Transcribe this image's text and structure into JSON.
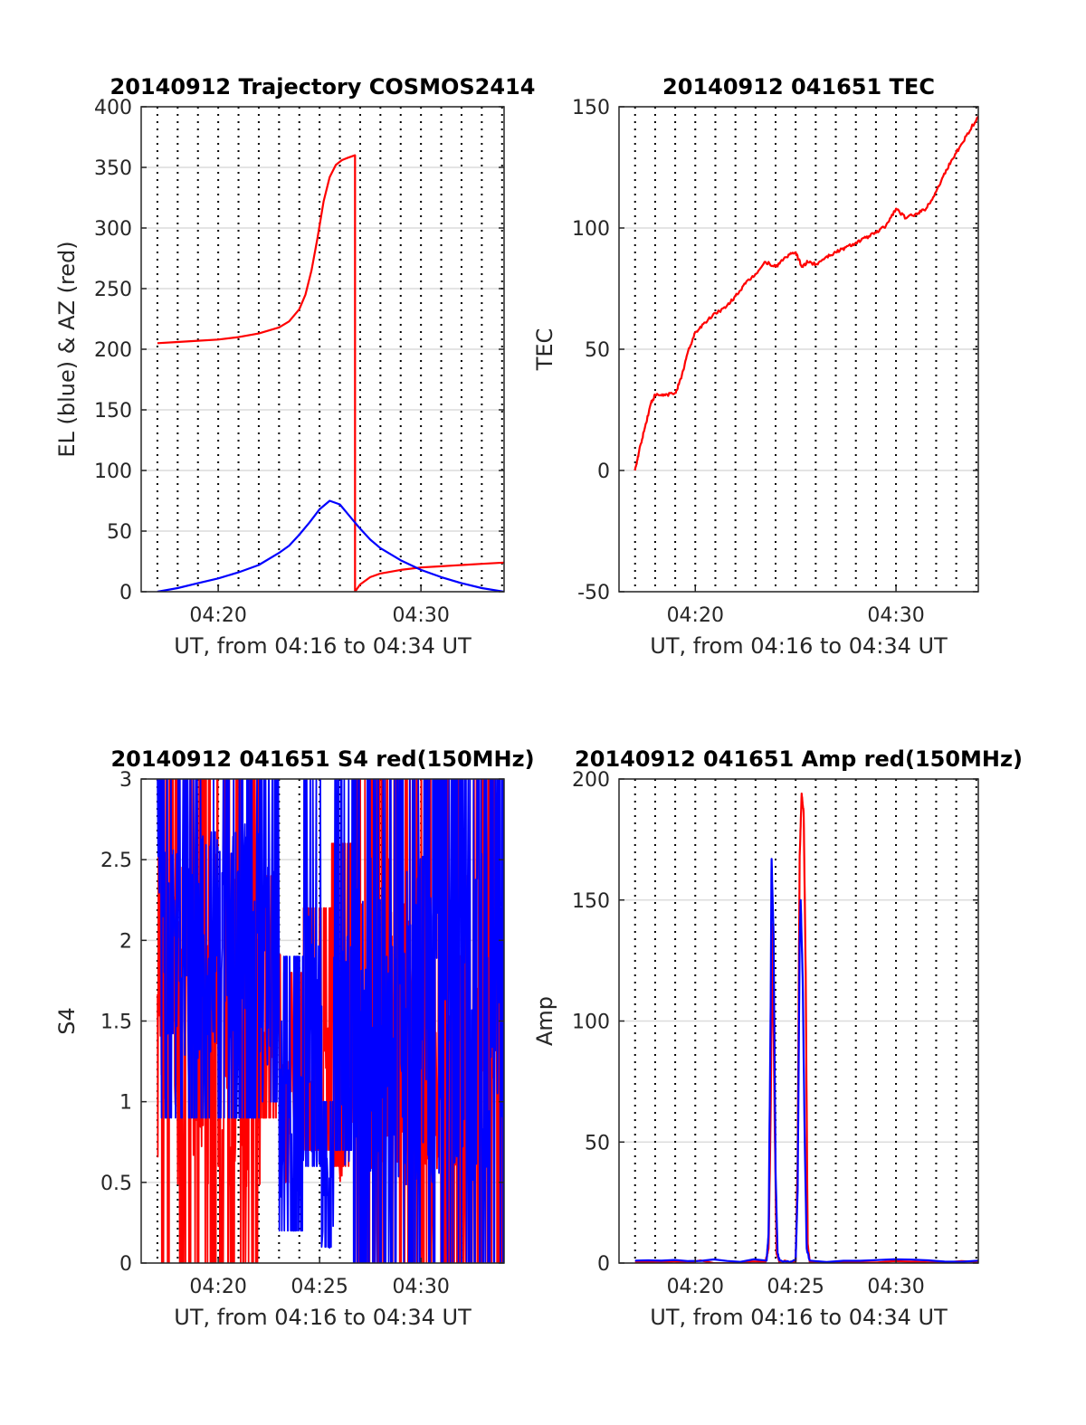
{
  "chart_data": [
    {
      "type": "line",
      "title": "20140912 Trajectory COSMOS2414",
      "xlabel": "UT, from 04:16 to 04:34 UT",
      "ylabel": "EL (blue) & AZ (red)",
      "xlim": [
        16.2,
        34.1
      ],
      "ylim": [
        0,
        400
      ],
      "x_tick_labels": [
        {
          "x": 20,
          "label": "04:20"
        },
        {
          "x": 30,
          "label": "04:30"
        }
      ],
      "y_ticks": [
        0,
        50,
        100,
        150,
        200,
        250,
        300,
        350,
        400
      ],
      "grid": true,
      "series": [
        {
          "color": "#ff0000",
          "x": [
            17,
            18,
            19,
            20,
            21,
            22,
            23,
            23.5,
            24,
            24.3,
            24.6,
            24.9,
            25.2,
            25.5,
            25.8,
            26.1,
            26.4,
            26.75,
            26.75,
            27.0,
            27.5,
            28,
            29,
            30,
            31,
            32,
            33,
            34.1
          ],
          "y": [
            205,
            206,
            207,
            208,
            210,
            213,
            218,
            223,
            233,
            245,
            265,
            292,
            322,
            342,
            352,
            356,
            358,
            360,
            0,
            6,
            12,
            15,
            18,
            20,
            21,
            22,
            23,
            24
          ]
        },
        {
          "color": "#0000ff",
          "x": [
            17,
            18,
            19,
            20,
            21,
            22,
            23,
            23.5,
            24,
            24.5,
            25,
            25.5,
            26,
            26.5,
            27,
            27.5,
            28,
            29,
            30,
            31,
            32,
            33,
            34.1
          ],
          "y": [
            0,
            3,
            7,
            11,
            16,
            22,
            32,
            38,
            47,
            57,
            68,
            75,
            72,
            62,
            52,
            43,
            36,
            26,
            18,
            12,
            7,
            3,
            0
          ]
        }
      ]
    },
    {
      "type": "line",
      "title": "20140912 041651 TEC",
      "xlabel": "UT, from 04:16 to 04:34 UT",
      "ylabel": "TEC",
      "xlim": [
        16.2,
        34.1
      ],
      "ylim": [
        -50,
        150
      ],
      "x_tick_labels": [
        {
          "x": 20,
          "label": "04:20"
        },
        {
          "x": 30,
          "label": "04:30"
        }
      ],
      "y_ticks": [
        -50,
        0,
        50,
        100,
        150
      ],
      "grid": true,
      "series": [
        {
          "color": "#ff0000",
          "x": [
            17.0,
            17.2,
            17.5,
            17.8,
            18.0,
            18.5,
            19.0,
            19.3,
            19.6,
            20.0,
            20.5,
            21.0,
            21.5,
            22.0,
            22.5,
            23.0,
            23.5,
            24.0,
            24.5,
            25.0,
            25.3,
            25.6,
            26.0,
            26.5,
            27.0,
            27.5,
            28.0,
            28.5,
            29.0,
            29.5,
            30.0,
            30.5,
            31.0,
            31.5,
            32.0,
            32.5,
            33.0,
            33.5,
            34.1
          ],
          "y": [
            0,
            8,
            18,
            28,
            31,
            31,
            32,
            38,
            48,
            57,
            61,
            65,
            67,
            72,
            77,
            81,
            86,
            84,
            88,
            90,
            84,
            86,
            85,
            88,
            90,
            92,
            94,
            96,
            98,
            101,
            108,
            104,
            106,
            108,
            115,
            124,
            131,
            138,
            146
          ]
        }
      ]
    },
    {
      "type": "line",
      "title": "20140912 041651 S4 red(150MHz)",
      "xlabel": "UT, from 04:16 to 04:34 UT",
      "ylabel": "S4",
      "xlim": [
        16.2,
        34.1
      ],
      "ylim": [
        0,
        3
      ],
      "x_tick_labels": [
        {
          "x": 20,
          "label": "04:20"
        },
        {
          "x": 25,
          "label": "04:25"
        },
        {
          "x": 30,
          "label": "04:30"
        }
      ],
      "y_ticks": [
        0,
        0.5,
        1,
        1.5,
        2,
        2.5,
        3
      ],
      "grid": true,
      "series": [
        {
          "color": "#ff0000",
          "segments": [
            {
              "x_start": 17.0,
              "x_end": 22.1,
              "low": 0,
              "high": 3,
              "mid": 1.5
            },
            {
              "x_start": 22.1,
              "x_end": 23.1,
              "low": 0.9,
              "high": 2.4,
              "mid": 1.6
            },
            {
              "x_start": 23.1,
              "x_end": 24.1,
              "low": 0.5,
              "high": 1.8,
              "mid": 1.0
            },
            {
              "x_start": 24.1,
              "x_end": 25.6,
              "low": 0.7,
              "high": 2.2,
              "mid": 1.2
            },
            {
              "x_start": 25.6,
              "x_end": 26.6,
              "low": 0.6,
              "high": 2.6,
              "mid": 1.2
            },
            {
              "x_start": 26.6,
              "x_end": 34.1,
              "low": 0,
              "high": 3,
              "mid": 1.5
            }
          ]
        },
        {
          "color": "#0000ff",
          "segments": [
            {
              "x_start": 17.0,
              "x_end": 22.1,
              "low": 0.9,
              "high": 3,
              "mid": 2.0
            },
            {
              "x_start": 22.1,
              "x_end": 23.0,
              "low": 1.0,
              "high": 3,
              "mid": 1.8
            },
            {
              "x_start": 23.0,
              "x_end": 24.2,
              "low": 0.2,
              "high": 1.9,
              "mid": 1.0
            },
            {
              "x_start": 24.2,
              "x_end": 25.1,
              "low": 0.6,
              "high": 3,
              "mid": 1.4
            },
            {
              "x_start": 25.1,
              "x_end": 25.7,
              "low": 0.1,
              "high": 1.0,
              "mid": 0.4
            },
            {
              "x_start": 25.7,
              "x_end": 26.6,
              "low": 0.7,
              "high": 3,
              "mid": 1.4
            },
            {
              "x_start": 26.6,
              "x_end": 34.1,
              "low": 0,
              "high": 3,
              "mid": 1.5
            }
          ]
        }
      ]
    },
    {
      "type": "line",
      "title": "20140912 041651 Amp red(150MHz)",
      "xlabel": "UT, from 04:16 to 04:34 UT",
      "ylabel": "Amp",
      "xlim": [
        16.2,
        34.1
      ],
      "ylim": [
        0,
        200
      ],
      "x_tick_labels": [
        {
          "x": 20,
          "label": "04:20"
        },
        {
          "x": 25,
          "label": "04:25"
        },
        {
          "x": 30,
          "label": "04:30"
        }
      ],
      "y_ticks": [
        0,
        50,
        100,
        150,
        200
      ],
      "grid": true,
      "series": [
        {
          "color": "#ff0000",
          "x": [
            17,
            23.5,
            23.65,
            23.75,
            23.85,
            23.95,
            24.05,
            24.2,
            25.0,
            25.1,
            25.2,
            25.3,
            25.4,
            25.5,
            25.6,
            25.7,
            34.1
          ],
          "y": [
            0.5,
            0.5,
            6,
            58,
            140,
            62,
            4,
            0.5,
            0.5,
            42,
            168,
            194,
            186,
            120,
            8,
            0.5,
            0.5
          ]
        },
        {
          "color": "#0000ff",
          "x": [
            17,
            23.55,
            23.65,
            23.75,
            23.8,
            23.9,
            24.0,
            24.1,
            24.2,
            25.0,
            25.1,
            25.2,
            25.25,
            25.35,
            25.45,
            25.55,
            25.7,
            34.1
          ],
          "y": [
            1,
            1,
            12,
            100,
            167,
            135,
            38,
            4,
            1,
            1,
            30,
            132,
            150,
            118,
            52,
            6,
            1,
            1
          ]
        }
      ]
    }
  ]
}
